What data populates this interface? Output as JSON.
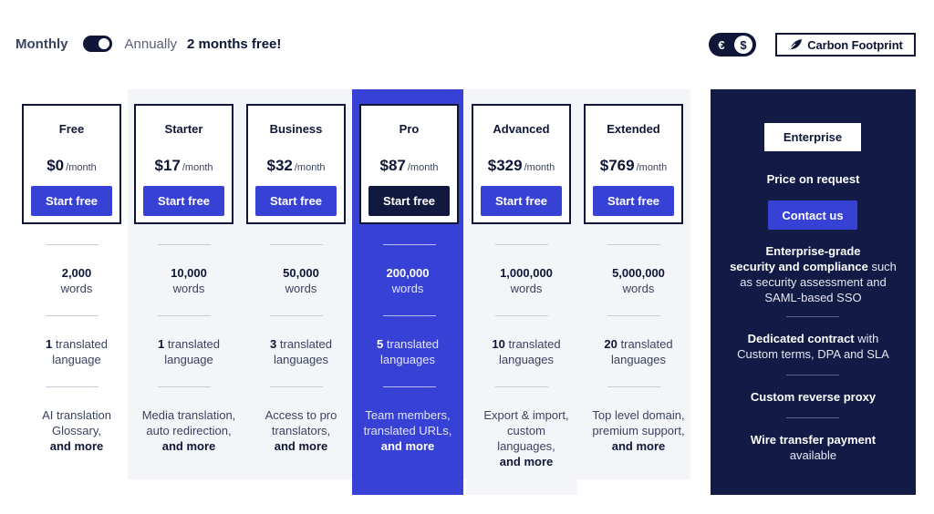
{
  "billing": {
    "monthly_label": "Monthly",
    "annually_label": "Annually",
    "promo_label": "2 months free!"
  },
  "currency": {
    "euro": "€",
    "dollar": "$",
    "selected": "dollar"
  },
  "carbon_footprint_label": "Carbon Footprint",
  "colors": {
    "brand_blue": "#3741d6",
    "navy": "#121a46",
    "grey_band": "#f4f5f9"
  },
  "plans": [
    {
      "name": "Free",
      "amount": "$0",
      "period": "/month",
      "cta": "Start free",
      "words_num": "2,000",
      "words_unit": "words",
      "lang_count": "1",
      "lang_unit": "translated language",
      "features_line1": "AI translation",
      "features_line2": "Glossary,",
      "features_line3": "",
      "features_more": "and more"
    },
    {
      "name": "Starter",
      "amount": "$17",
      "period": "/month",
      "cta": "Start free",
      "words_num": "10,000",
      "words_unit": "words",
      "lang_count": "1",
      "lang_unit": "translated language",
      "features_line1": "Media translation,",
      "features_line2": "auto redirection,",
      "features_line3": "",
      "features_more": "and more"
    },
    {
      "name": "Business",
      "amount": "$32",
      "period": "/month",
      "cta": "Start free",
      "words_num": "50,000",
      "words_unit": "words",
      "lang_count": "3",
      "lang_unit": "translated languages",
      "features_line1": "Access to pro",
      "features_line2": "translators,",
      "features_line3": "",
      "features_more": "and more"
    },
    {
      "name": "Pro",
      "amount": "$87",
      "period": "/month",
      "cta": "Start free",
      "words_num": "200,000",
      "words_unit": "words",
      "lang_count": "5",
      "lang_unit": "translated languages",
      "features_line1": "Team members,",
      "features_line2": "translated URLs,",
      "features_line3": "",
      "features_more": "and more"
    },
    {
      "name": "Advanced",
      "amount": "$329",
      "period": "/month",
      "cta": "Start free",
      "words_num": "1,000,000",
      "words_unit": "words",
      "lang_count": "10",
      "lang_unit": "translated languages",
      "features_line1": "Export & import,",
      "features_line2": "custom",
      "features_line3": "languages,",
      "features_more": "and more"
    },
    {
      "name": "Extended",
      "amount": "$769",
      "period": "/month",
      "cta": "Start free",
      "words_num": "5,000,000",
      "words_unit": "words",
      "lang_count": "20",
      "lang_unit": "translated languages",
      "features_line1": "Top level domain,",
      "features_line2": "premium support,",
      "features_line3": "",
      "features_more": "and more"
    }
  ],
  "enterprise": {
    "tag": "Enterprise",
    "price": "Price on request",
    "cta": "Contact us",
    "security_bold1": "Enterprise-grade",
    "security_bold2": "security and compliance",
    "security_rest1": "such",
    "security_rest2": "as security assessment and",
    "security_rest3": "SAML-based SSO",
    "contract_bold": "Dedicated contract",
    "contract_rest1": "with",
    "contract_rest2": "Custom terms, DPA and SLA",
    "proxy": "Custom reverse proxy",
    "wire_bold": "Wire transfer payment",
    "wire_rest": "available"
  }
}
